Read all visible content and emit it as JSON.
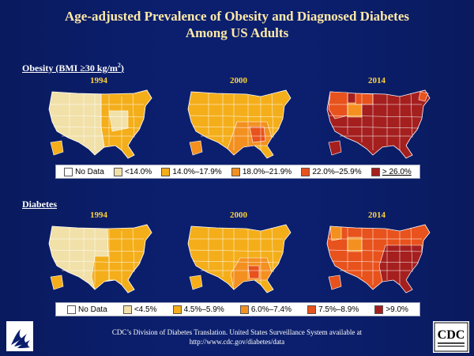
{
  "title_line1": "Age-adjusted Prevalence of Obesity and Diagnosed Diabetes",
  "title_line2": "Among US Adults",
  "obesity": {
    "label_prefix": "Obesity  (BMI ≥30 kg/m",
    "label_sup": "2",
    "label_suffix": ")",
    "years": [
      "1994",
      "2000",
      "2014"
    ],
    "legend": [
      {
        "label": "No Data",
        "color": "#ffffff"
      },
      {
        "label": "<14.0%",
        "color": "#f1e0a8"
      },
      {
        "label": "14.0%–17.9%",
        "color": "#f4ae1a"
      },
      {
        "label": "18.0%–21.9%",
        "color": "#f39020"
      },
      {
        "label": "22.0%–25.9%",
        "color": "#e8521c"
      },
      {
        "label": "> 26.0%",
        "color": "#a51f1f"
      }
    ]
  },
  "diabetes": {
    "label": "Diabetes",
    "years": [
      "1994",
      "2000",
      "2014"
    ],
    "legend": [
      {
        "label": "No Data",
        "color": "#ffffff"
      },
      {
        "label": "<4.5%",
        "color": "#f1e0a8"
      },
      {
        "label": "4.5%–5.9%",
        "color": "#f4ae1a"
      },
      {
        "label": "6.0%–7.4%",
        "color": "#f39020"
      },
      {
        "label": "7.5%–8.9%",
        "color": "#e8521c"
      },
      {
        "label": ">9.0%",
        "color": "#a51f1f"
      }
    ]
  },
  "footer_line1": "CDC’s Division of Diabetes Translation. United States Surveillance System available at",
  "footer_line2": "http://www.cdc.gov/diabetes/data",
  "cdc_logo_text": "CDC"
}
